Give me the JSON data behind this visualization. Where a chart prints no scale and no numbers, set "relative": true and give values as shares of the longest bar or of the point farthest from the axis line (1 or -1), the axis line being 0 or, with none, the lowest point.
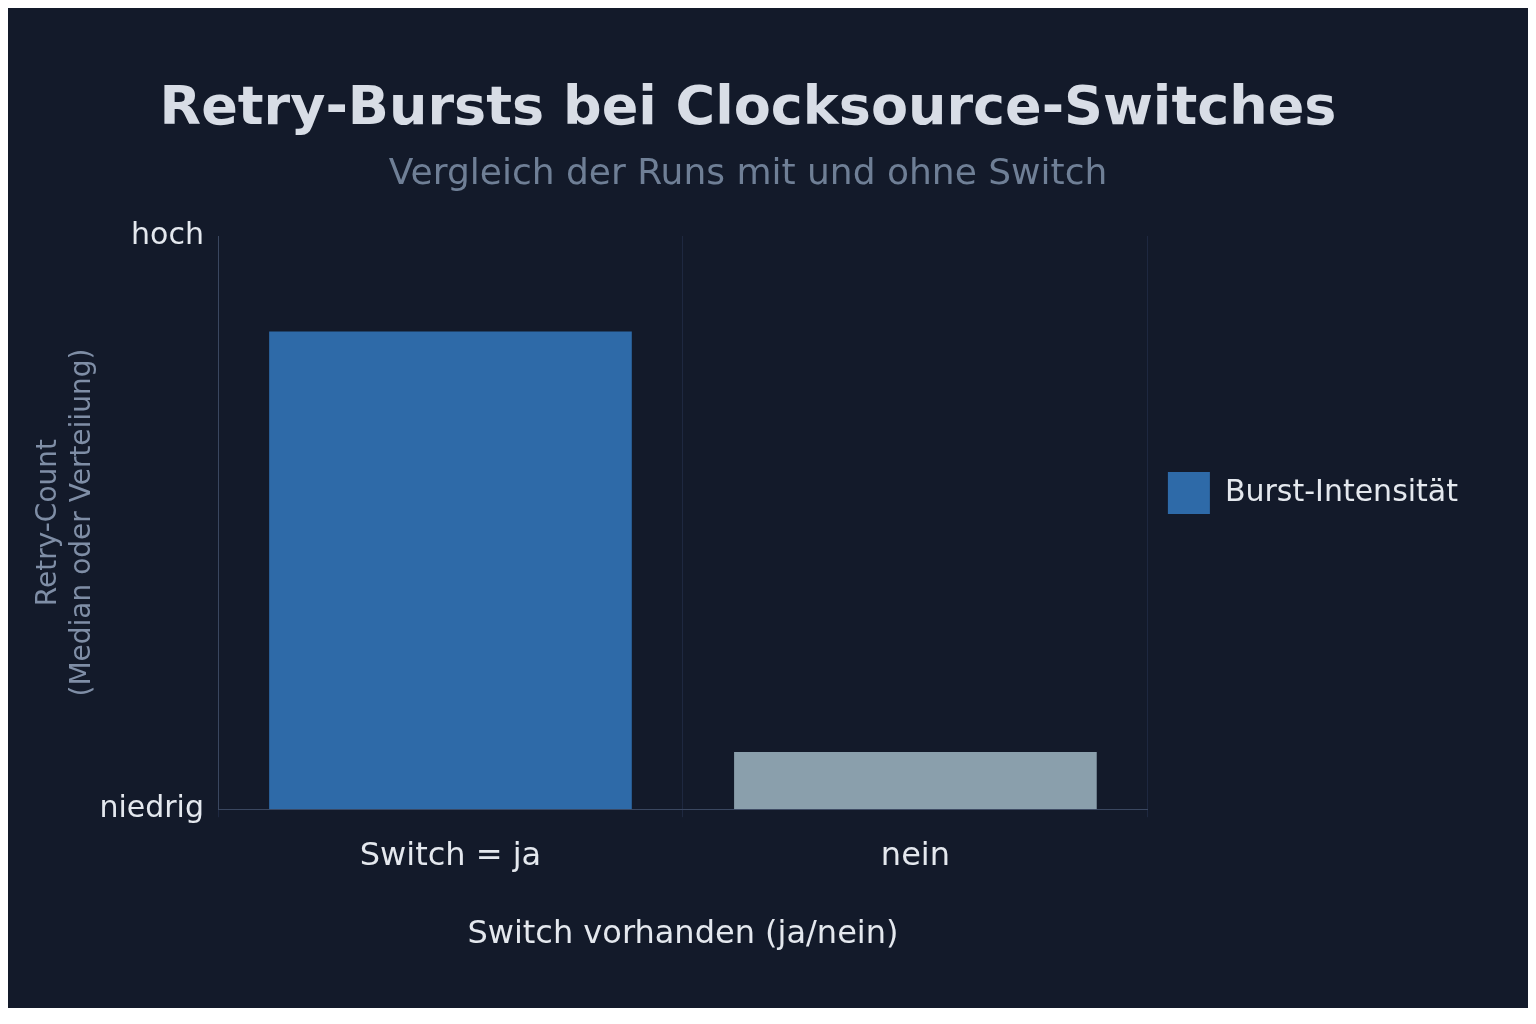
{
  "chart_data": {
    "type": "bar",
    "title": "Retry-Bursts bei Clocksource-Switches",
    "subtitle": "Vergleich der Runs mit und ohne Switch",
    "xlabel": "Switch vorhanden (ja/nein)",
    "ylabel": "Retry-Count\n(Median oder Verteiiung)",
    "categories": [
      "Switch = ja",
      "nein"
    ],
    "series": [
      {
        "name": "Burst-Intensität",
        "color": "#2e6aa8",
        "colors": [
          "#2e6aa8",
          "#8a9fac"
        ],
        "values": [
          1,
          0.12
        ]
      }
    ],
    "relative": true,
    "annotations": [
      "hoch",
      "niedrig"
    ],
    "grid": "x",
    "legend": "right"
  }
}
